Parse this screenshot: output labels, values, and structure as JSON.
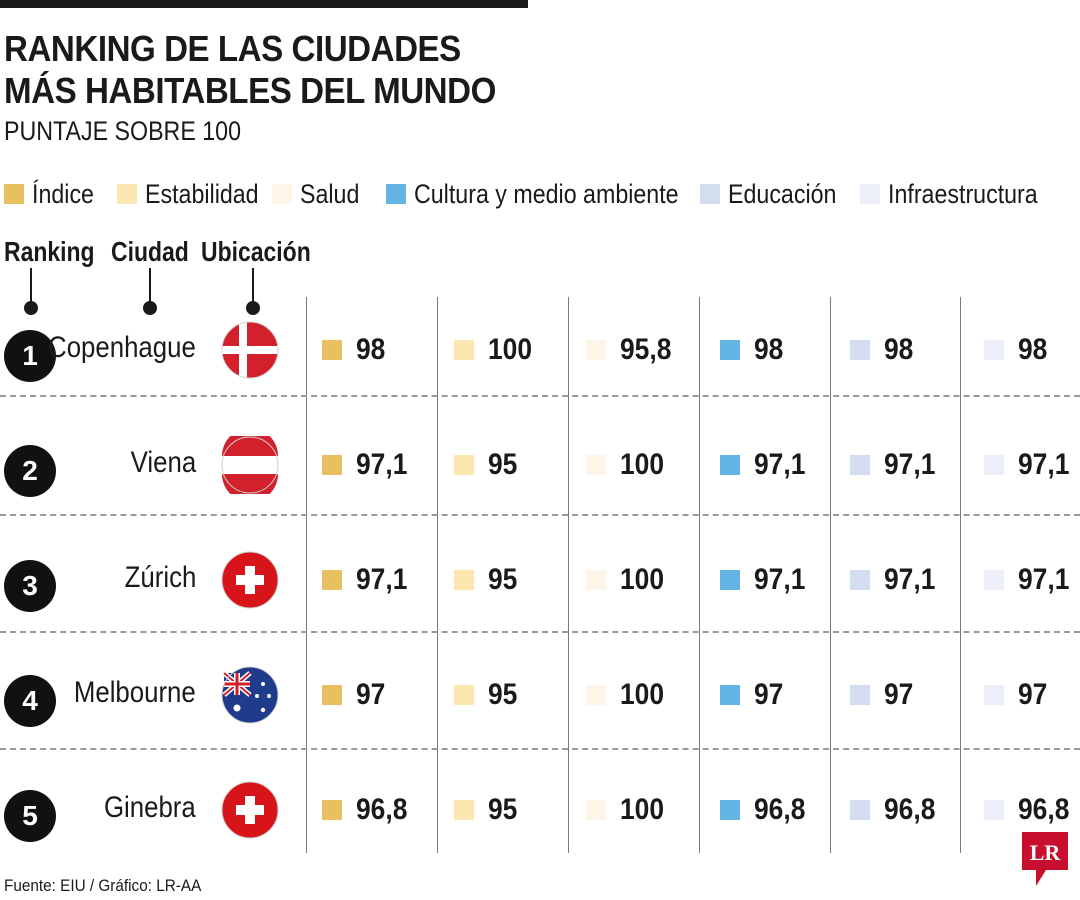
{
  "title_line1": "RANKING DE LAS CIUDADES",
  "title_line2": "MÁS HABITABLES DEL MUNDO",
  "subtitle": "PUNTAJE SOBRE 100",
  "column_headers": {
    "ranking": "Ranking",
    "ciudad": "Ciudad",
    "ubicacion": "Ubicación"
  },
  "legend": [
    {
      "label": "Índice",
      "color": "#E8C060"
    },
    {
      "label": "Estabilidad",
      "color": "#FCE6B2"
    },
    {
      "label": "Salud",
      "color": "#FDF6E8"
    },
    {
      "label": "Cultura y medio ambiente",
      "color": "#63B4E2"
    },
    {
      "label": "Educación",
      "color": "#D3DDF0"
    },
    {
      "label": "Infraestructura",
      "color": "#ECEFF7"
    }
  ],
  "chart_data": {
    "type": "table",
    "title": "RANKING DE LAS CIUDADES MÁS HABITABLES DEL MUNDO",
    "subtitle": "PUNTAJE SOBRE 100",
    "columns": [
      "Índice",
      "Estabilidad",
      "Salud",
      "Cultura y medio ambiente",
      "Educación",
      "Infraestructura"
    ],
    "rows": [
      {
        "rank": "1",
        "city": "Copenhague",
        "flag": "denmark-flag-icon",
        "values": [
          "98",
          "100",
          "95,8",
          "98",
          "98",
          "98"
        ]
      },
      {
        "rank": "2",
        "city": "Viena",
        "flag": "austria-flag-icon",
        "values": [
          "97,1",
          "95",
          "100",
          "97,1",
          "97,1",
          "97,1"
        ]
      },
      {
        "rank": "3",
        "city": "Zúrich",
        "flag": "switzerland-flag-icon",
        "values": [
          "97,1",
          "95",
          "100",
          "97,1",
          "97,1",
          "97,1"
        ]
      },
      {
        "rank": "4",
        "city": "Melbourne",
        "flag": "australia-flag-icon",
        "values": [
          "97",
          "95",
          "100",
          "97",
          "97",
          "97"
        ]
      },
      {
        "rank": "5",
        "city": "Ginebra",
        "flag": "switzerland-flag-icon",
        "values": [
          "96,8",
          "95",
          "100",
          "96,8",
          "96,8",
          "96,8"
        ]
      }
    ]
  },
  "source": "Fuente: EIU / Gráfico: LR-AA",
  "logo_text": "LR"
}
